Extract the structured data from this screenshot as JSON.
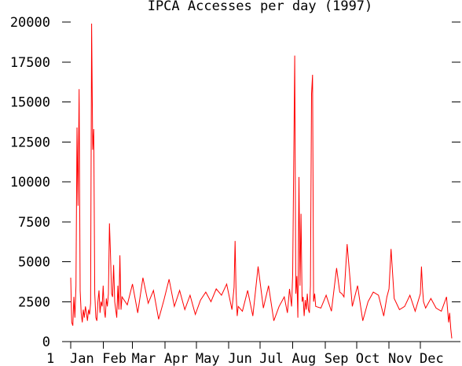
{
  "chart_data": {
    "type": "line",
    "title": "IPCA Accesses per day (1997)",
    "xlabel": "",
    "ylabel": "",
    "ylim": [
      0,
      20000
    ],
    "xlim": [
      1,
      365
    ],
    "y_ticks": [
      {
        "value": 0,
        "label": "0"
      },
      {
        "value": 2500,
        "label": "2500"
      },
      {
        "value": 5000,
        "label": "5000"
      },
      {
        "value": 7500,
        "label": "7500"
      },
      {
        "value": 10000,
        "label": "10000"
      },
      {
        "value": 12500,
        "label": "12500"
      },
      {
        "value": 15000,
        "label": "15000"
      },
      {
        "value": 17500,
        "label": "17500"
      },
      {
        "value": 20000,
        "label": "20000"
      }
    ],
    "x_first_label": {
      "value": 1,
      "label": "1"
    },
    "x_month_ticks": [
      {
        "day": 1,
        "label": "Jan"
      },
      {
        "day": 32,
        "label": "Feb"
      },
      {
        "day": 60,
        "label": "Mar"
      },
      {
        "day": 91,
        "label": "Apr"
      },
      {
        "day": 121,
        "label": "May"
      },
      {
        "day": 152,
        "label": "Jun"
      },
      {
        "day": 182,
        "label": "Jul"
      },
      {
        "day": 213,
        "label": "Aug"
      },
      {
        "day": 244,
        "label": "Sep"
      },
      {
        "day": 274,
        "label": "Oct"
      },
      {
        "day": 305,
        "label": "Nov"
      },
      {
        "day": 335,
        "label": "Dec"
      }
    ],
    "grid": false,
    "colors": {
      "series": "#ff0000",
      "axis": "#000000"
    },
    "series": [
      {
        "name": "",
        "x": [
          1,
          2,
          3,
          4,
          5,
          6,
          7,
          8,
          9,
          10,
          11,
          12,
          13,
          14,
          15,
          16,
          17,
          18,
          19,
          20,
          21,
          22,
          23,
          24,
          25,
          26,
          27,
          28,
          29,
          30,
          31,
          32,
          33,
          34,
          35,
          36,
          37,
          38,
          39,
          40,
          41,
          42,
          43,
          44,
          45,
          46,
          47,
          48,
          49,
          50,
          55,
          60,
          65,
          70,
          75,
          80,
          85,
          90,
          95,
          100,
          105,
          110,
          115,
          120,
          125,
          130,
          135,
          140,
          145,
          150,
          155,
          157,
          158,
          159,
          160,
          161,
          165,
          170,
          175,
          180,
          185,
          190,
          195,
          200,
          205,
          208,
          210,
          212,
          213,
          214,
          215,
          216,
          217,
          218,
          219,
          220,
          221,
          222,
          223,
          224,
          225,
          226,
          227,
          228,
          229,
          230,
          231,
          232,
          233,
          234,
          235,
          240,
          245,
          250,
          255,
          258,
          260,
          262,
          265,
          270,
          275,
          280,
          285,
          290,
          295,
          300,
          303,
          305,
          307,
          310,
          315,
          320,
          325,
          330,
          335,
          336,
          337,
          338,
          340,
          345,
          350,
          355,
          360,
          362,
          363,
          364,
          365
        ],
        "values": [
          4000,
          1200,
          1000,
          2800,
          1500,
          3500,
          13400,
          8500,
          15800,
          3200,
          1800,
          1200,
          2000,
          1500,
          2200,
          1800,
          1300,
          2000,
          1700,
          2400,
          19900,
          12000,
          13300,
          3000,
          1500,
          1300,
          2500,
          3200,
          1800,
          2500,
          2200,
          3500,
          2000,
          1500,
          2700,
          2200,
          3000,
          7400,
          5500,
          3000,
          2800,
          4800,
          2500,
          2000,
          1500,
          3500,
          2000,
          5400,
          2000,
          2800,
          2300,
          3600,
          1800,
          4000,
          2400,
          3200,
          1400,
          2600,
          3900,
          2200,
          3200,
          2000,
          2900,
          1700,
          2600,
          3100,
          2500,
          3300,
          2900,
          3600,
          2000,
          3400,
          6300,
          3000,
          1600,
          2200,
          1900,
          3200,
          1600,
          4700,
          2100,
          3500,
          1300,
          2200,
          2800,
          1800,
          3300,
          2200,
          4200,
          11000,
          17900,
          3000,
          4100,
          1500,
          10300,
          3500,
          8000,
          2500,
          2800,
          1600,
          2600,
          2000,
          3000,
          2000,
          1800,
          3500,
          15500,
          16700,
          2500,
          3000,
          2200,
          2100,
          2900,
          1900,
          4600,
          3100,
          3000,
          2800,
          6100,
          2200,
          3500,
          1300,
          2500,
          3100,
          2900,
          1600,
          2800,
          3300,
          5800,
          2700,
          2000,
          2200,
          2900,
          1900,
          3000,
          4700,
          3400,
          2500,
          2100,
          2700,
          2100,
          1900,
          2800,
          1200,
          1800,
          800,
          200
        ]
      }
    ]
  }
}
